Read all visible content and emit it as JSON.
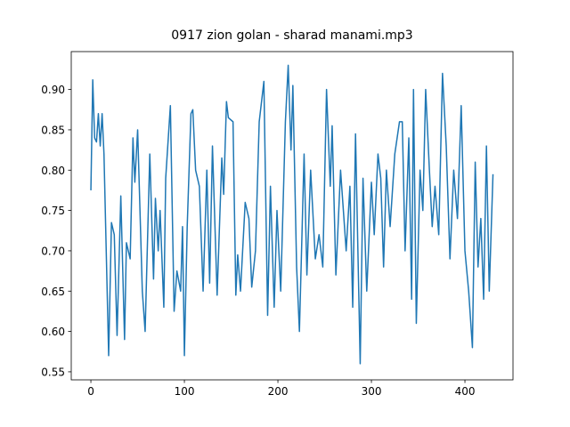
{
  "chart_data": {
    "type": "line",
    "title": "0917 zion golan - sharad manami.mp3",
    "x": [
      0,
      2,
      4,
      6,
      8,
      10,
      12,
      14,
      19,
      22,
      25,
      28,
      32,
      36,
      38,
      42,
      45,
      47,
      50,
      55,
      58,
      63,
      67,
      69,
      72,
      74,
      78,
      80,
      85,
      89,
      92,
      96,
      98,
      100,
      103,
      107,
      109,
      112,
      116,
      120,
      124,
      127,
      130,
      135,
      140,
      142,
      145,
      147,
      152,
      155,
      157,
      160,
      165,
      169,
      172,
      176,
      180,
      185,
      189,
      192,
      196,
      199,
      203,
      208,
      211,
      214,
      216,
      220,
      223,
      228,
      231,
      235,
      240,
      244,
      248,
      252,
      256,
      258,
      262,
      267,
      270,
      273,
      277,
      280,
      283,
      288,
      291,
      295,
      300,
      303,
      307,
      310,
      313,
      316,
      320,
      325,
      330,
      333,
      336,
      340,
      343,
      345,
      348,
      352,
      355,
      358,
      362,
      365,
      368,
      372,
      376,
      380,
      384,
      388,
      392,
      396,
      400,
      404,
      408,
      411,
      414,
      417,
      420,
      423,
      426,
      430
    ],
    "series": [
      {
        "color": "#1f77b4",
        "values": [
          0.775,
          0.912,
          0.84,
          0.835,
          0.87,
          0.83,
          0.87,
          0.82,
          0.57,
          0.735,
          0.72,
          0.595,
          0.768,
          0.59,
          0.71,
          0.69,
          0.84,
          0.785,
          0.85,
          0.65,
          0.6,
          0.82,
          0.665,
          0.765,
          0.7,
          0.75,
          0.63,
          0.79,
          0.88,
          0.625,
          0.675,
          0.65,
          0.73,
          0.57,
          0.73,
          0.87,
          0.875,
          0.8,
          0.78,
          0.65,
          0.8,
          0.66,
          0.83,
          0.645,
          0.815,
          0.77,
          0.885,
          0.865,
          0.86,
          0.645,
          0.695,
          0.65,
          0.76,
          0.74,
          0.655,
          0.7,
          0.86,
          0.91,
          0.62,
          0.78,
          0.63,
          0.75,
          0.65,
          0.86,
          0.93,
          0.825,
          0.905,
          0.68,
          0.6,
          0.82,
          0.67,
          0.8,
          0.69,
          0.72,
          0.68,
          0.9,
          0.78,
          0.855,
          0.67,
          0.8,
          0.75,
          0.7,
          0.78,
          0.63,
          0.845,
          0.56,
          0.79,
          0.65,
          0.785,
          0.72,
          0.82,
          0.79,
          0.68,
          0.8,
          0.73,
          0.82,
          0.86,
          0.86,
          0.7,
          0.84,
          0.64,
          0.9,
          0.61,
          0.8,
          0.75,
          0.9,
          0.8,
          0.73,
          0.78,
          0.72,
          0.92,
          0.83,
          0.69,
          0.8,
          0.74,
          0.88,
          0.7,
          0.65,
          0.58,
          0.81,
          0.68,
          0.74,
          0.64,
          0.83,
          0.65,
          0.795
        ]
      }
    ],
    "xlim": [
      -21,
      451.4
    ],
    "ylim": [
      0.54,
      0.947
    ],
    "xticks": [
      0,
      100,
      200,
      300,
      400
    ],
    "yticks": [
      0.55,
      {
        "value": 0.6,
        "label": "0.60"
      },
      0.65,
      {
        "value": 0.7,
        "label": "0.70"
      },
      0.75,
      {
        "value": 0.8,
        "label": "0.80"
      },
      0.85,
      {
        "value": 0.9,
        "label": "0.90"
      }
    ]
  }
}
